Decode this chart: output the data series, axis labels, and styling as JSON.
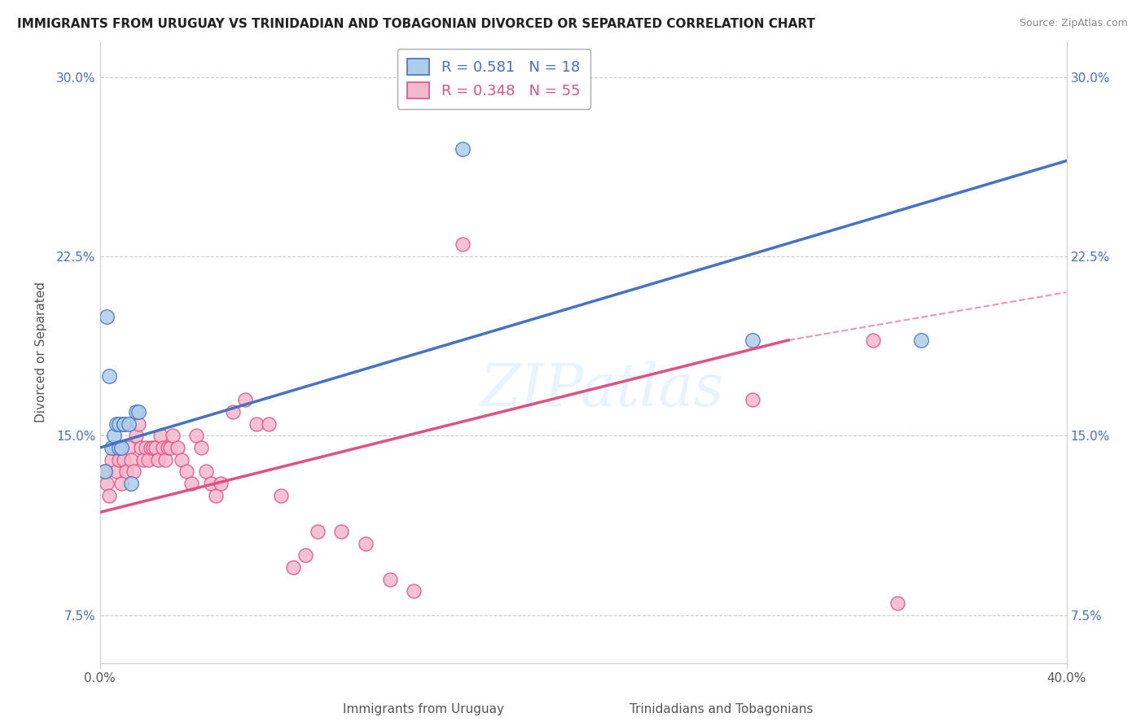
{
  "title": "IMMIGRANTS FROM URUGUAY VS TRINIDADIAN AND TOBAGONIAN DIVORCED OR SEPARATED CORRELATION CHART",
  "source": "Source: ZipAtlas.com",
  "xlabel_blue": "Immigrants from Uruguay",
  "xlabel_pink": "Trinidadians and Tobagonians",
  "ylabel": "Divorced or Separated",
  "xlim": [
    0.0,
    0.4
  ],
  "ylim": [
    0.055,
    0.315
  ],
  "yticks": [
    0.075,
    0.15,
    0.225,
    0.3
  ],
  "ytick_labels": [
    "7.5%",
    "15.0%",
    "22.5%",
    "30.0%"
  ],
  "xtick_labels": [
    "0.0%",
    "",
    "",
    "",
    "40.0%"
  ],
  "blue_R": 0.581,
  "blue_N": 18,
  "pink_R": 0.348,
  "pink_N": 55,
  "blue_color": "#aecde8",
  "blue_line_color": "#4472c4",
  "pink_color": "#f4b8cc",
  "pink_line_color": "#e05080",
  "grid_color": "#cccccc",
  "watermark": "ZIPatlas",
  "blue_points_x": [
    0.002,
    0.003,
    0.004,
    0.005,
    0.006,
    0.007,
    0.008,
    0.008,
    0.009,
    0.01,
    0.01,
    0.012,
    0.013,
    0.015,
    0.016,
    0.15,
    0.27,
    0.34
  ],
  "blue_points_y": [
    0.135,
    0.2,
    0.175,
    0.145,
    0.15,
    0.155,
    0.155,
    0.145,
    0.145,
    0.155,
    0.155,
    0.155,
    0.13,
    0.16,
    0.16,
    0.27,
    0.19,
    0.19
  ],
  "pink_points_x": [
    0.002,
    0.003,
    0.004,
    0.005,
    0.006,
    0.007,
    0.008,
    0.009,
    0.01,
    0.011,
    0.012,
    0.013,
    0.014,
    0.015,
    0.016,
    0.017,
    0.018,
    0.019,
    0.02,
    0.021,
    0.022,
    0.023,
    0.024,
    0.025,
    0.026,
    0.027,
    0.028,
    0.029,
    0.03,
    0.032,
    0.034,
    0.036,
    0.038,
    0.04,
    0.042,
    0.044,
    0.046,
    0.048,
    0.05,
    0.055,
    0.06,
    0.065,
    0.07,
    0.075,
    0.08,
    0.085,
    0.09,
    0.1,
    0.11,
    0.12,
    0.13,
    0.15,
    0.27,
    0.32,
    0.33
  ],
  "pink_points_y": [
    0.135,
    0.13,
    0.125,
    0.14,
    0.145,
    0.135,
    0.14,
    0.13,
    0.14,
    0.135,
    0.145,
    0.14,
    0.135,
    0.15,
    0.155,
    0.145,
    0.14,
    0.145,
    0.14,
    0.145,
    0.145,
    0.145,
    0.14,
    0.15,
    0.145,
    0.14,
    0.145,
    0.145,
    0.15,
    0.145,
    0.14,
    0.135,
    0.13,
    0.15,
    0.145,
    0.135,
    0.13,
    0.125,
    0.13,
    0.16,
    0.165,
    0.155,
    0.155,
    0.125,
    0.095,
    0.1,
    0.11,
    0.11,
    0.105,
    0.09,
    0.085,
    0.23,
    0.165,
    0.19,
    0.08
  ],
  "blue_line_x": [
    0.0,
    0.4
  ],
  "blue_line_y": [
    0.145,
    0.265
  ],
  "pink_line_x": [
    0.0,
    0.285
  ],
  "pink_line_y": [
    0.118,
    0.19
  ],
  "dashed_line_x": [
    0.285,
    0.4
  ],
  "dashed_line_y": [
    0.19,
    0.21
  ]
}
